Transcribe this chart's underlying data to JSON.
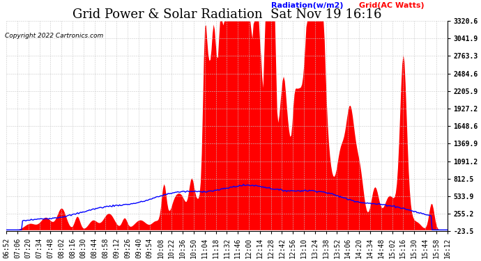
{
  "title": "Grid Power & Solar Radiation  Sat Nov 19 16:16",
  "copyright_text": "Copyright 2022 Cartronics.com",
  "legend_radiation": "Radiation(w/m2)",
  "legend_grid": "Grid(AC Watts)",
  "ylabel_right_values": [
    3320.6,
    3041.9,
    2763.3,
    2484.6,
    2205.9,
    1927.2,
    1648.6,
    1369.9,
    1091.2,
    812.5,
    533.9,
    255.2,
    -23.5
  ],
  "ymin": -23.5,
  "ymax": 3320.6,
  "radiation_color": "#0000FF",
  "grid_color": "#FF0000",
  "background_color": "#FFFFFF",
  "plot_bg_color": "#FFFFFF",
  "grid_line_color": "#C8C8C8",
  "title_fontsize": 13,
  "tick_fontsize": 7,
  "x_tick_labels": [
    "06:52",
    "07:06",
    "07:20",
    "07:34",
    "07:48",
    "08:02",
    "08:16",
    "08:30",
    "08:44",
    "08:58",
    "09:12",
    "09:26",
    "09:40",
    "09:54",
    "10:08",
    "10:22",
    "10:36",
    "10:50",
    "11:04",
    "11:18",
    "11:32",
    "11:46",
    "12:00",
    "12:14",
    "12:28",
    "12:42",
    "12:56",
    "13:10",
    "13:24",
    "13:38",
    "13:52",
    "14:06",
    "14:20",
    "14:34",
    "14:48",
    "15:02",
    "15:16",
    "15:30",
    "15:44",
    "15:58",
    "16:12"
  ]
}
